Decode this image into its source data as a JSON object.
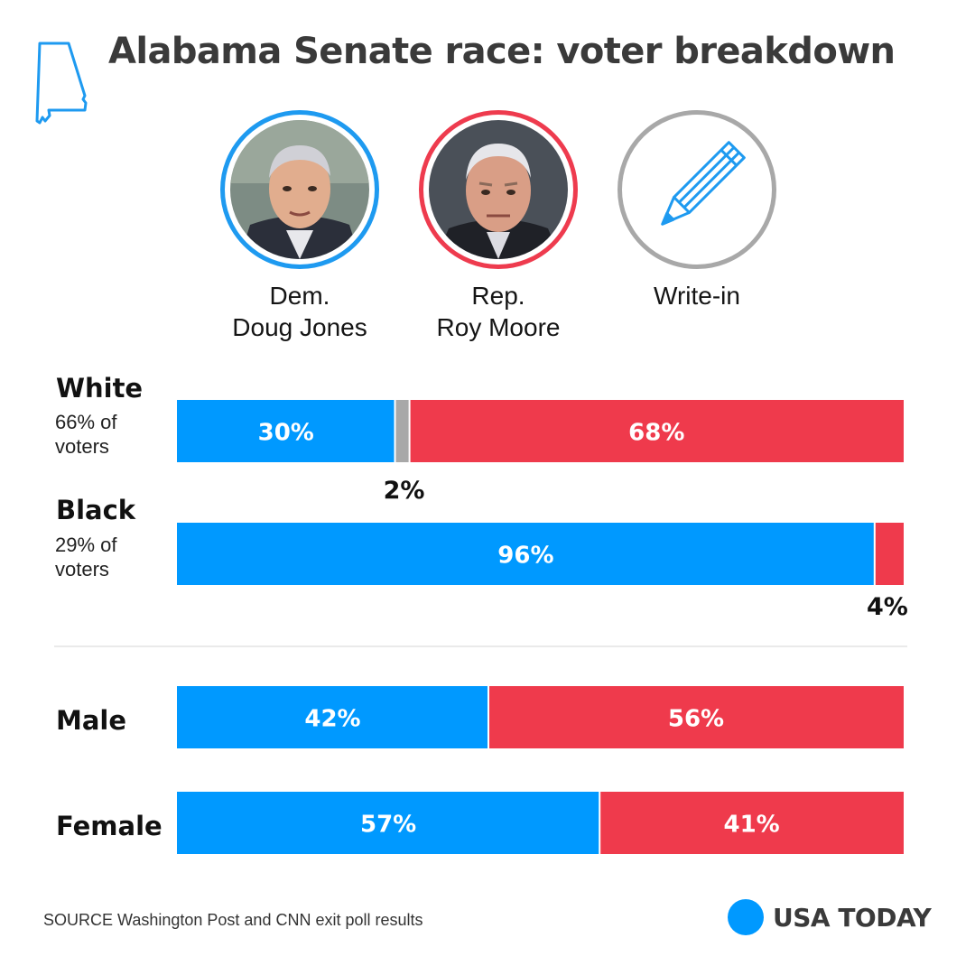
{
  "header": {
    "title": "Alabama Senate race: voter breakdown",
    "state_icon": "alabama-outline-icon",
    "state_color": "#1e9af0"
  },
  "candidates": [
    {
      "id": "jones",
      "party": "Dem.",
      "name": "Doug Jones",
      "ring_color": "#1e9af0"
    },
    {
      "id": "moore",
      "party": "Rep.",
      "name": "Roy Moore",
      "ring_color": "#ee3b4e"
    },
    {
      "id": "writein",
      "party": "",
      "name": "Write-in",
      "ring_color": "#a8a8a8",
      "icon": "pencil-icon"
    }
  ],
  "chart_data": {
    "type": "bar",
    "orientation": "horizontal",
    "stacked": true,
    "percent_scale": [
      0,
      100
    ],
    "series_colors": {
      "Doug Jones": "#0099ff",
      "Write-in": "#a8a8a8",
      "Roy Moore": "#ef3a4c"
    },
    "groups": [
      {
        "title": "White",
        "subtitle": "66% of voters",
        "segments": [
          {
            "series": "Doug Jones",
            "value": 30,
            "label": "30%"
          },
          {
            "series": "Write-in",
            "value": 2,
            "label": "2%"
          },
          {
            "series": "Roy Moore",
            "value": 68,
            "label": "68%"
          }
        ]
      },
      {
        "title": "Black",
        "subtitle": "29% of voters",
        "segments": [
          {
            "series": "Doug Jones",
            "value": 96,
            "label": "96%"
          },
          {
            "series": "Roy Moore",
            "value": 4,
            "label": "4%"
          }
        ]
      },
      {
        "title": "Male",
        "subtitle": "",
        "segments": [
          {
            "series": "Doug Jones",
            "value": 42,
            "label": "42%"
          },
          {
            "series": "Roy Moore",
            "value": 56,
            "label": "56%"
          }
        ]
      },
      {
        "title": "Female",
        "subtitle": "",
        "segments": [
          {
            "series": "Doug Jones",
            "value": 57,
            "label": "57%"
          },
          {
            "series": "Roy Moore",
            "value": 41,
            "label": "41%"
          }
        ]
      }
    ]
  },
  "footer": {
    "source": "SOURCE Washington Post and CNN exit poll results",
    "brand": "USA TODAY",
    "brand_color": "#0099ff"
  }
}
